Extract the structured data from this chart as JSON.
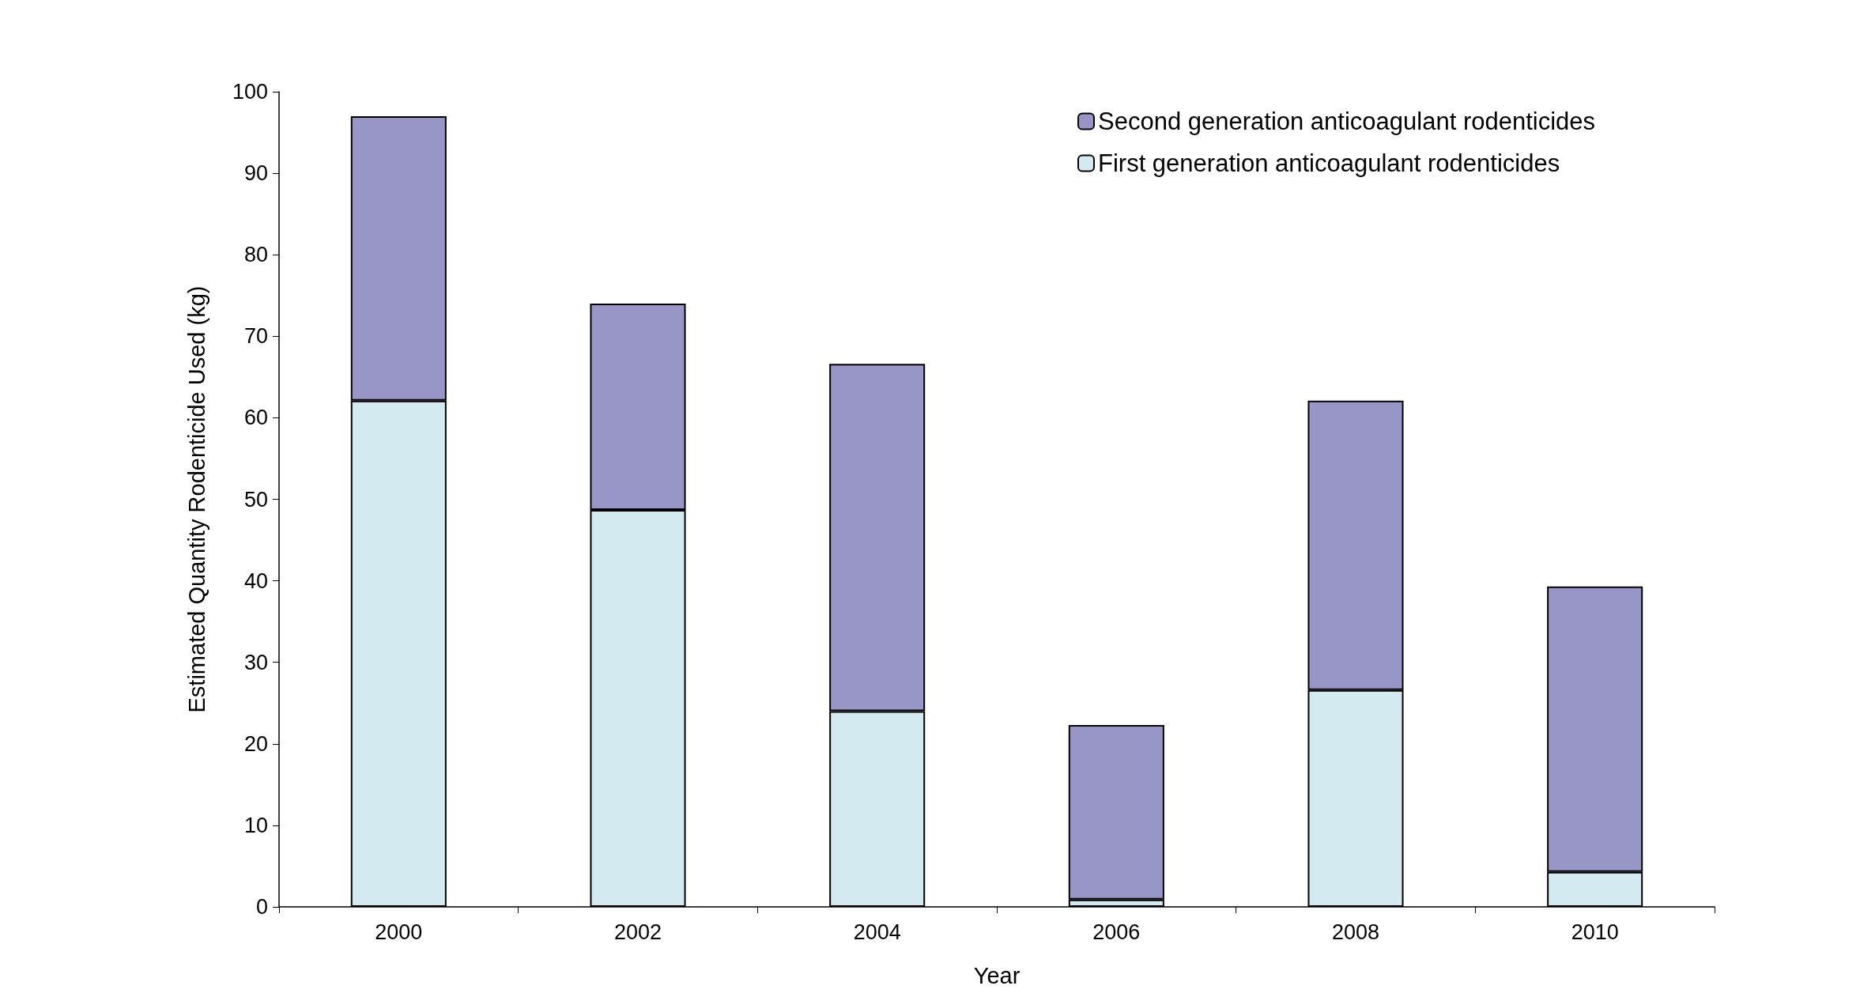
{
  "chart_data": {
    "type": "bar",
    "stacked": true,
    "xlabel": "Year",
    "ylabel": "Estimated Quantity Rodenticide Used (kg)",
    "categories": [
      "2000",
      "2002",
      "2004",
      "2006",
      "2008",
      "2010"
    ],
    "series": [
      {
        "name": "First generation anticoagulant rodenticides",
        "color": "#d3eaf1",
        "values": [
          62.1,
          48.7,
          24.0,
          0.9,
          26.6,
          4.3
        ]
      },
      {
        "name": "Second generation anticoagulant rodenticides",
        "color": "#9896c7",
        "values": [
          34.9,
          25.3,
          42.6,
          21.4,
          35.5,
          35.0
        ]
      }
    ],
    "ylim": [
      0,
      100
    ],
    "yticks": [
      0,
      10,
      20,
      30,
      40,
      50,
      60,
      70,
      80,
      90,
      100
    ],
    "grid": false,
    "legend": "top right"
  }
}
